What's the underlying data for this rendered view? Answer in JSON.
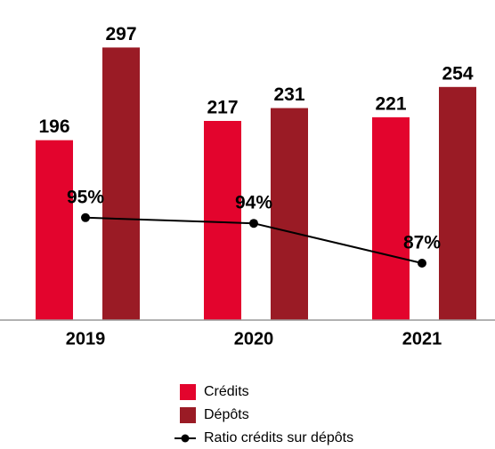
{
  "chart_data": {
    "type": "bar",
    "categories": [
      "2019",
      "2020",
      "2021"
    ],
    "series": [
      {
        "name": "Crédits",
        "color": "#e3042d",
        "values": [
          196,
          217,
          221
        ]
      },
      {
        "name": "Dépôts",
        "color": "#9a1b25",
        "values": [
          297,
          231,
          254
        ]
      },
      {
        "name": "Ratio crédits sur dépôts",
        "color": "#000000",
        "type": "line",
        "axis": "y2",
        "values": [
          95,
          94,
          87
        ],
        "value_labels": [
          "95%",
          "94%",
          "87%"
        ]
      }
    ],
    "ylim": [
      0,
      310
    ],
    "y2lim": [
      77,
      127
    ],
    "legend": "bottom"
  }
}
